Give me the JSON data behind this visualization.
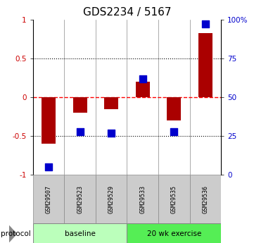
{
  "title": "GDS2234 / 5167",
  "samples": [
    "GSM29507",
    "GSM29523",
    "GSM29529",
    "GSM29533",
    "GSM29535",
    "GSM29536"
  ],
  "log2_ratio": [
    -0.6,
    -0.2,
    -0.15,
    0.2,
    -0.3,
    0.82
  ],
  "percentile_rank": [
    5,
    28,
    27,
    62,
    28,
    97
  ],
  "bar_color": "#aa0000",
  "dot_color": "#0000cc",
  "ylim_left": [
    -1,
    1
  ],
  "ylim_right": [
    0,
    100
  ],
  "left_yticks": [
    -1,
    -0.5,
    0,
    0.5,
    1
  ],
  "left_yticklabels": [
    "-1",
    "-0.5",
    "0",
    "0.5",
    "1"
  ],
  "right_yticks": [
    0,
    25,
    50,
    75,
    100
  ],
  "right_yticklabels": [
    "0",
    "25",
    "50",
    "75",
    "100%"
  ],
  "group_colors_light": "#bbffbb",
  "group_colors_dark": "#55ee55",
  "sample_box_color": "#cccccc",
  "bar_width": 0.45,
  "dot_size": 55,
  "background_color": "#ffffff",
  "title_fontsize": 11
}
